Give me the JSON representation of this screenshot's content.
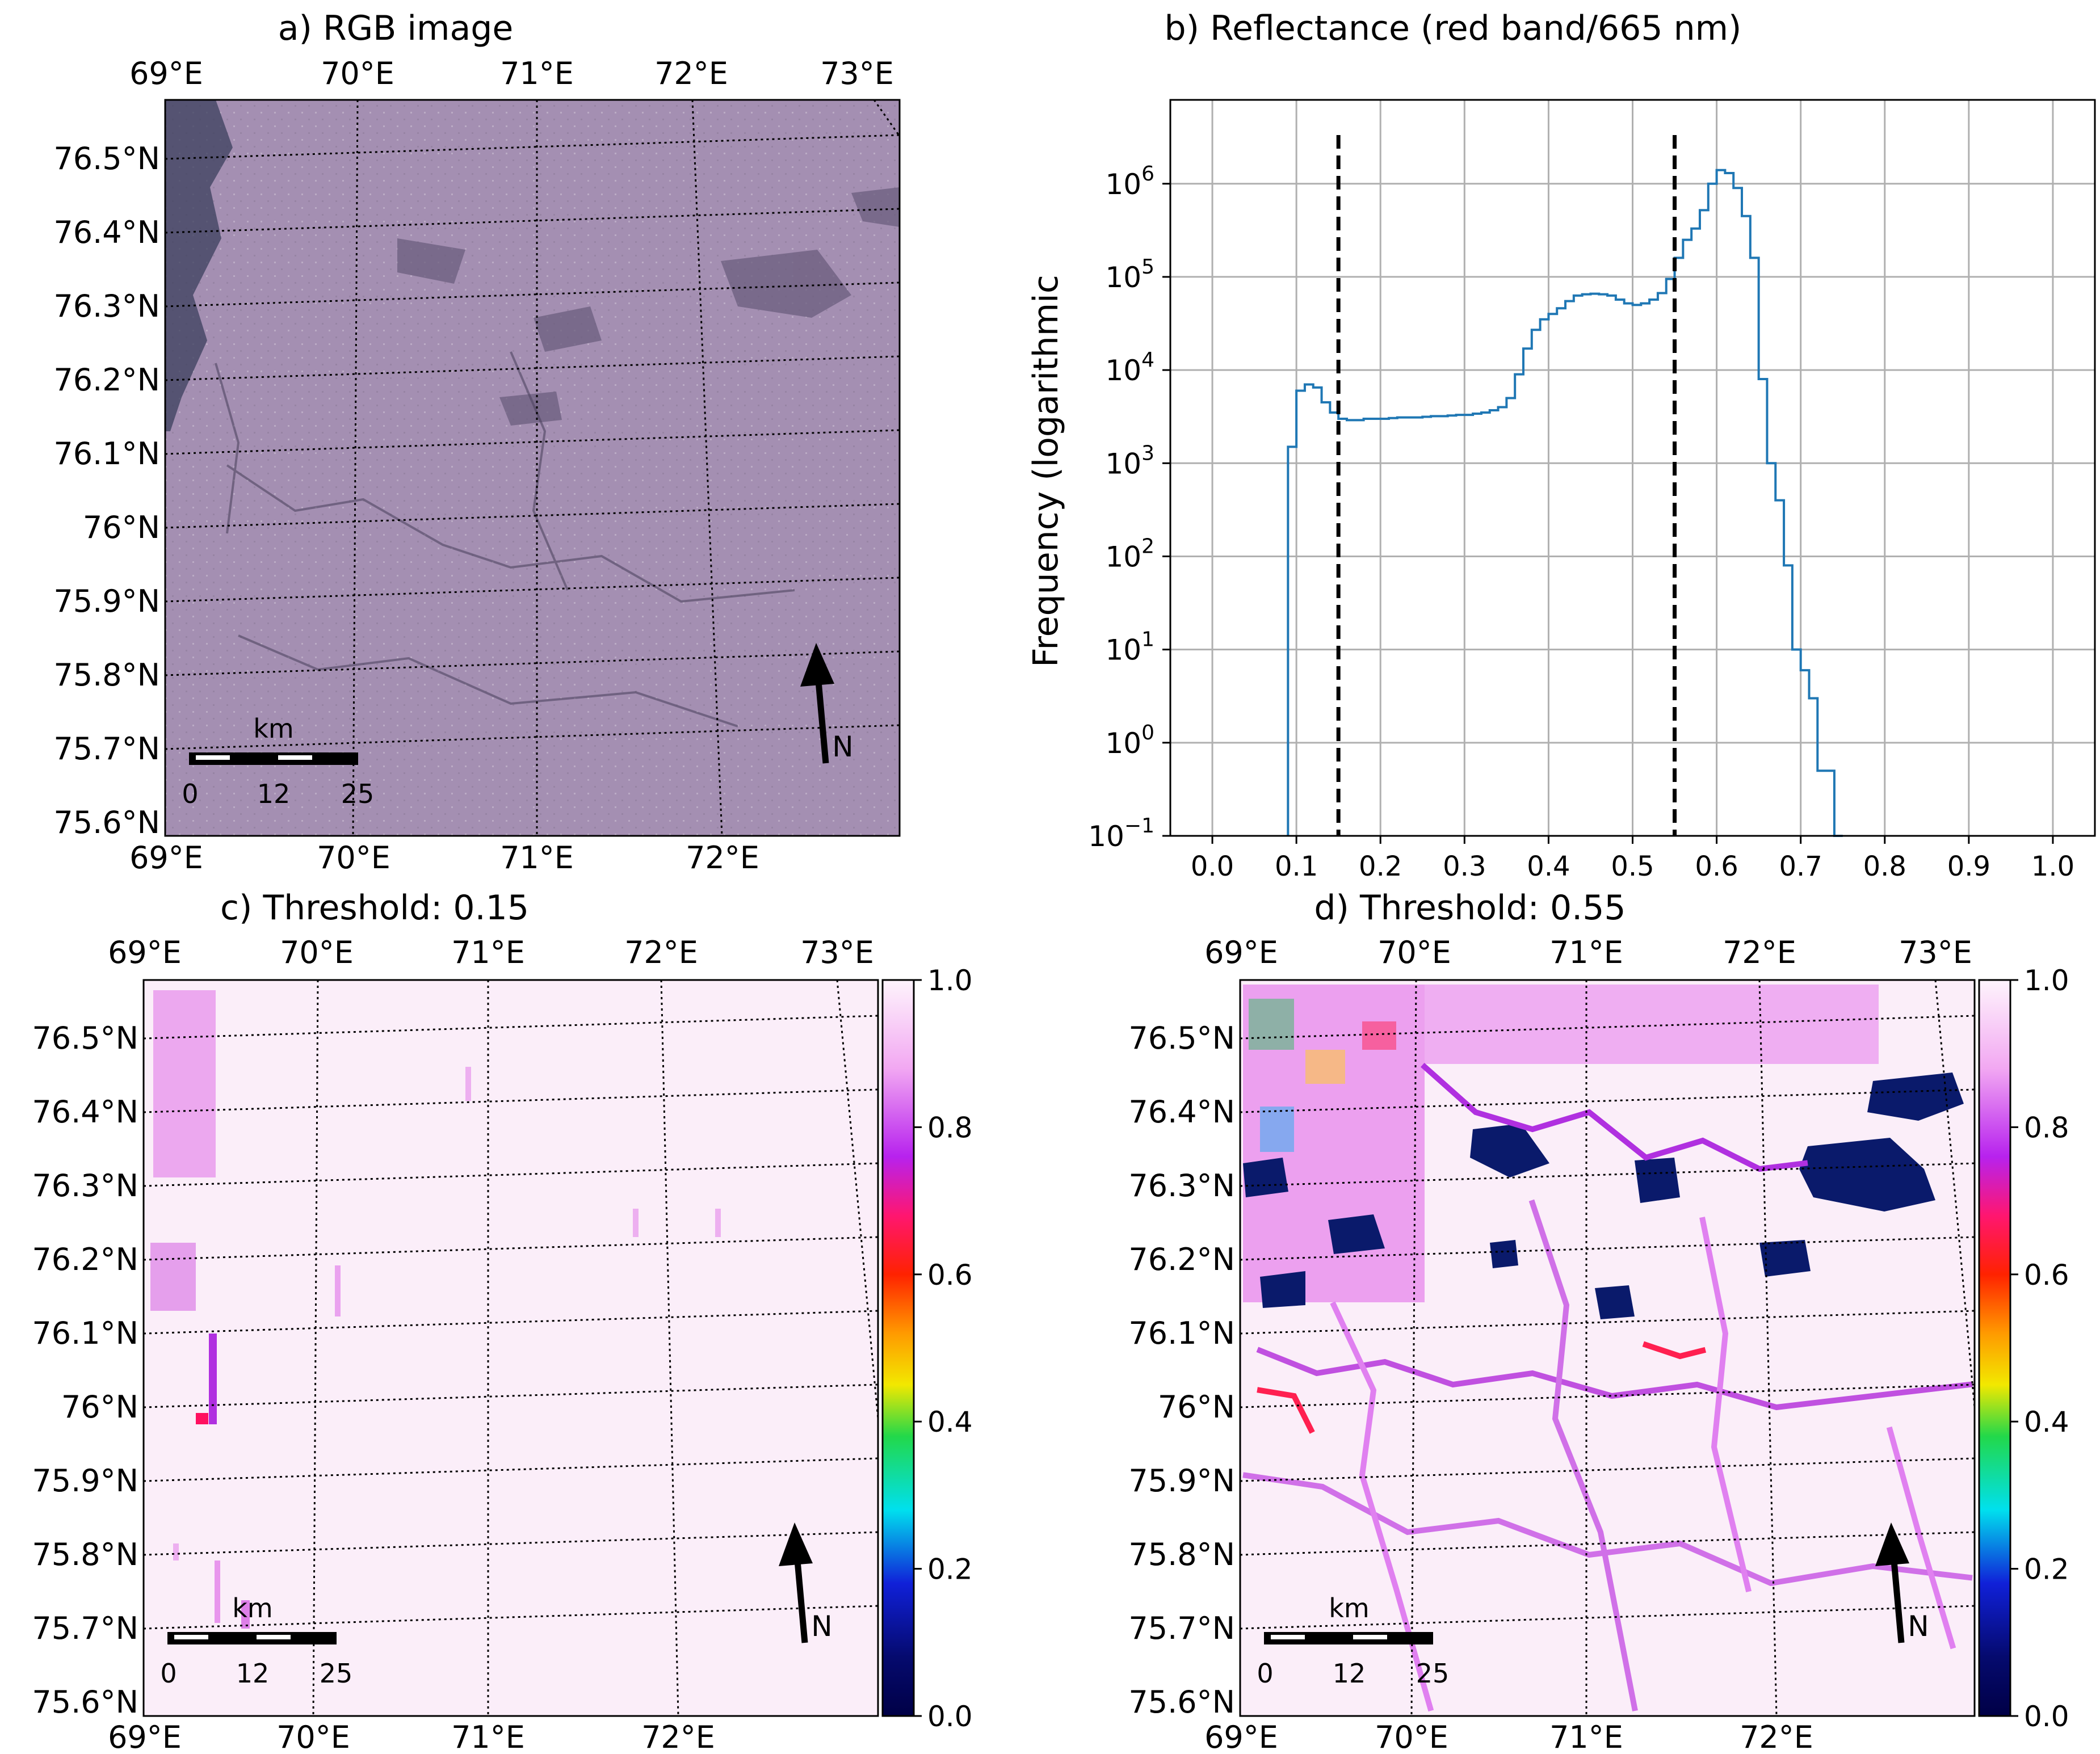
{
  "panels": {
    "a": {
      "title": "a) RGB image"
    },
    "b": {
      "title": "b) Reflectance (red band/665 nm)"
    },
    "c": {
      "title": "c) Threshold: 0.15"
    },
    "d": {
      "title": "d) Threshold: 0.55"
    }
  },
  "map_axes": {
    "lon_ticks": [
      "69°E",
      "70°E",
      "71°E",
      "72°E",
      "73°E"
    ],
    "lat_ticks": [
      "76.5°N",
      "76.4°N",
      "76.3°N",
      "76.2°N",
      "76.1°N",
      "76°N",
      "75.9°N",
      "75.8°N",
      "75.7°N",
      "75.6°N"
    ],
    "scalebar": {
      "unit": "km",
      "labels": [
        "0",
        "12",
        "25"
      ]
    },
    "north_label": "N"
  },
  "colorbar": {
    "ticks": [
      "1.0",
      "0.8",
      "0.6",
      "0.4",
      "0.2",
      "0.0"
    ]
  },
  "colors": {
    "rgb_image": "#a48fb2",
    "histogram": "#1f77b4",
    "grid": "#b0b0b0",
    "threshold_fill": "#fbeef9"
  },
  "chart_data": {
    "type": "histogram",
    "title": "b) Reflectance (red band/665 nm)",
    "ylabel": "Frequency (logarithmic",
    "xlabel": "",
    "xlim": [
      -0.05,
      1.05
    ],
    "ylim_log10": [
      -1,
      6.9
    ],
    "yscale": "log",
    "grid": true,
    "x_ticks": [
      "0.0",
      "0.1",
      "0.2",
      "0.3",
      "0.4",
      "0.5",
      "0.6",
      "0.7",
      "0.8",
      "0.9",
      "1.0"
    ],
    "y_tick_exponents": [
      "6",
      "5",
      "4",
      "3",
      "2",
      "1",
      "0",
      "−1"
    ],
    "thresholds": [
      0.15,
      0.55
    ],
    "bin_edges": [
      0.09,
      0.1,
      0.11,
      0.12,
      0.13,
      0.14,
      0.15,
      0.16,
      0.17,
      0.18,
      0.19,
      0.2,
      0.21,
      0.22,
      0.23,
      0.24,
      0.25,
      0.26,
      0.27,
      0.28,
      0.29,
      0.3,
      0.31,
      0.32,
      0.33,
      0.34,
      0.35,
      0.36,
      0.37,
      0.38,
      0.39,
      0.4,
      0.41,
      0.42,
      0.43,
      0.44,
      0.45,
      0.46,
      0.47,
      0.48,
      0.49,
      0.5,
      0.51,
      0.52,
      0.53,
      0.54,
      0.55,
      0.56,
      0.57,
      0.58,
      0.59,
      0.6,
      0.61,
      0.62,
      0.63,
      0.64,
      0.65,
      0.66,
      0.67,
      0.68,
      0.69,
      0.7,
      0.71,
      0.72,
      0.73,
      0.74,
      0.75
    ],
    "counts": [
      1500,
      6000,
      7000,
      6500,
      4500,
      3500,
      3000,
      2900,
      2900,
      3000,
      3000,
      3000,
      3050,
      3100,
      3100,
      3100,
      3150,
      3200,
      3200,
      3250,
      3300,
      3300,
      3400,
      3500,
      3700,
      4000,
      5000,
      9000,
      17000,
      27000,
      35000,
      40000,
      46000,
      55000,
      63000,
      65000,
      66000,
      65000,
      63000,
      57000,
      52000,
      50000,
      52000,
      57000,
      67000,
      95000,
      160000,
      250000,
      330000,
      520000,
      1000000,
      1400000,
      1300000,
      900000,
      450000,
      160000,
      8000,
      1000,
      400,
      80,
      10,
      6,
      3,
      0.5,
      0.5,
      0.1
    ]
  }
}
